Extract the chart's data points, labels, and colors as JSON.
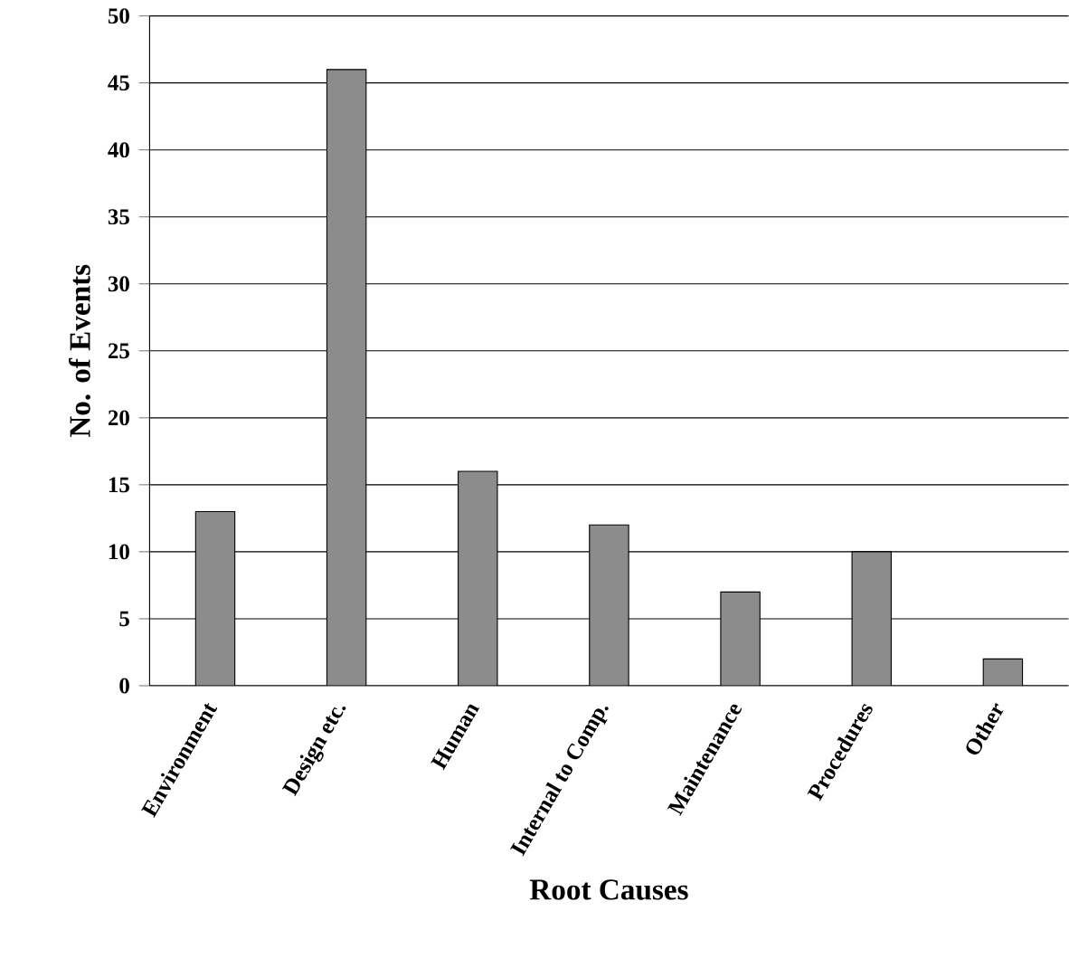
{
  "chart_data": {
    "type": "bar",
    "xlabel": "Root Causes",
    "ylabel": "No. of Events",
    "categories": [
      "Environment",
      "Design etc.",
      "Human",
      "Internal to Comp.",
      "Maintenance",
      "Procedures",
      "Other"
    ],
    "values": [
      13,
      46,
      16,
      12,
      7,
      10,
      2
    ],
    "color": "#8c8c8c",
    "ylim": [
      0,
      50
    ],
    "yticks": [
      0,
      5,
      10,
      15,
      20,
      25,
      30,
      35,
      40,
      45,
      50
    ],
    "grid": "y"
  }
}
